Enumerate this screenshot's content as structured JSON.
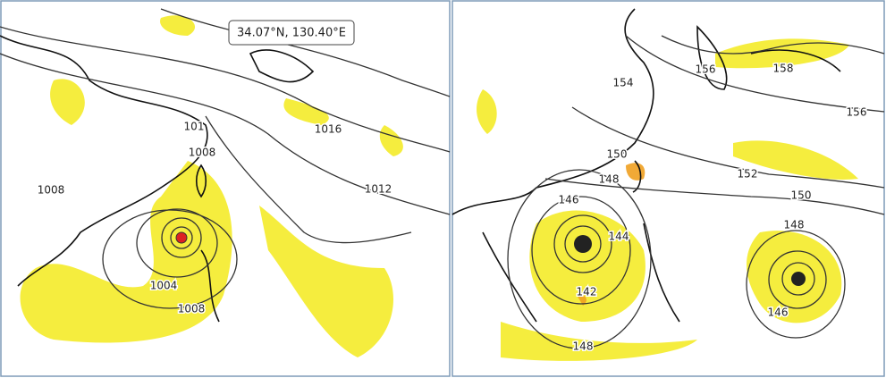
{
  "tooltip": "34.07°N, 130.40°E",
  "panels": [
    {
      "labels": [
        "1016",
        "1012",
        "101",
        "1008",
        "1008",
        "1004",
        "1008"
      ]
    },
    {
      "labels": [
        "156",
        "158",
        "156",
        "154",
        "150",
        "152",
        "150",
        "148",
        "148",
        "146",
        "144",
        "142",
        "146",
        "148"
      ]
    }
  ]
}
